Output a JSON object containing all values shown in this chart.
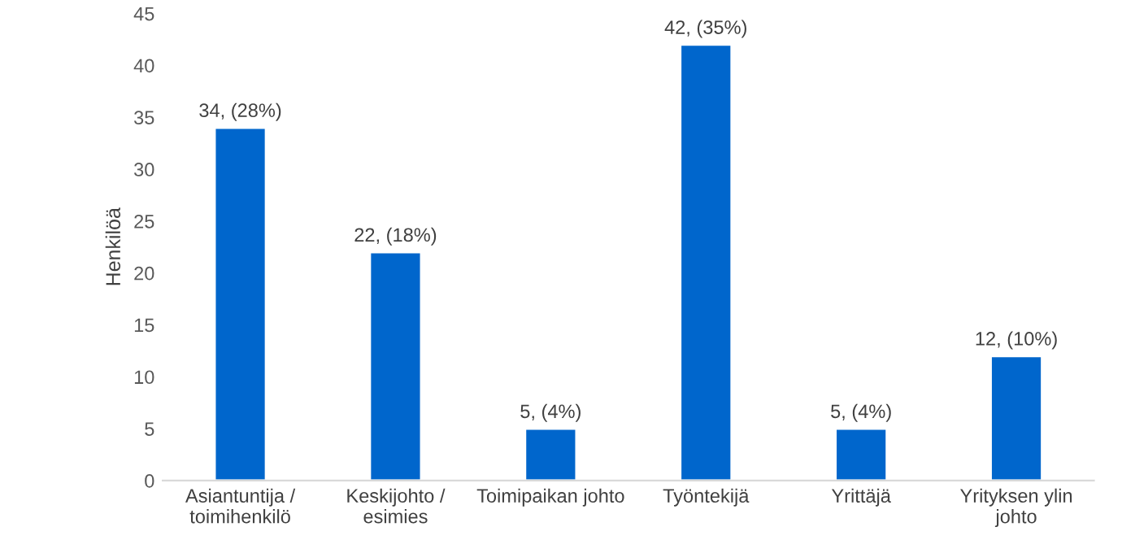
{
  "chart_data": {
    "type": "bar",
    "ylabel": "Henkilöä",
    "categories": [
      "Asiantuntija /\ntoimihenkilö",
      "Keskijohto /\nesimies",
      "Toimipaikan johto",
      "Työntekijä",
      "Yrittäjä",
      "Yrityksen ylin\njohto"
    ],
    "values": [
      34,
      22,
      5,
      42,
      5,
      12
    ],
    "value_labels": [
      "34, (28%)",
      "22, (18%)",
      "5, (4%)",
      "42, (35%)",
      "5, (4%)",
      "12, (10%)"
    ],
    "color": "#0066cc",
    "ylim": [
      0,
      45
    ],
    "yticks": [
      0,
      5,
      10,
      15,
      20,
      25,
      30,
      35,
      40,
      45
    ],
    "grid": false,
    "legend": false
  }
}
